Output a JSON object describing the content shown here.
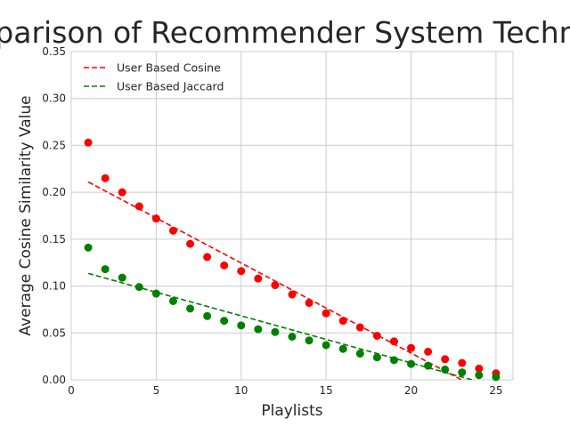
{
  "chart_data": {
    "type": "scatter",
    "title": "Comparison of Recommender System Techniques",
    "xlabel": "Playlists",
    "ylabel": "Average Cosine Similarity Value",
    "xlim": [
      0,
      26
    ],
    "ylim": [
      0,
      0.35
    ],
    "xticks": [
      0,
      5,
      10,
      15,
      20,
      25
    ],
    "yticks": [
      0.0,
      0.05,
      0.1,
      0.15,
      0.2,
      0.25,
      0.3,
      0.35
    ],
    "xtick_labels": [
      "0",
      "5",
      "10",
      "15",
      "20",
      "25"
    ],
    "ytick_labels": [
      "0.00",
      "0.05",
      "0.10",
      "0.15",
      "0.20",
      "0.25",
      "0.30",
      "0.35"
    ],
    "grid": true,
    "legend_position": "top-left",
    "x": [
      1,
      2,
      3,
      4,
      5,
      6,
      7,
      8,
      9,
      10,
      11,
      12,
      13,
      14,
      15,
      16,
      17,
      18,
      19,
      20,
      21,
      22,
      23,
      24,
      25
    ],
    "series": [
      {
        "name": "User Based Cosine",
        "color": "#ff0000",
        "values": [
          0.253,
          0.215,
          0.2,
          0.185,
          0.172,
          0.159,
          0.145,
          0.131,
          0.122,
          0.116,
          0.108,
          0.101,
          0.091,
          0.082,
          0.071,
          0.063,
          0.056,
          0.047,
          0.041,
          0.034,
          0.03,
          0.022,
          0.018,
          0.012,
          0.007
        ],
        "trend": {
          "x": [
            1,
            25
          ],
          "y": [
            0.211,
            -0.0195
          ]
        }
      },
      {
        "name": "User Based Jaccard",
        "color": "#008000",
        "values": [
          0.141,
          0.118,
          0.109,
          0.099,
          0.092,
          0.084,
          0.076,
          0.068,
          0.063,
          0.058,
          0.054,
          0.051,
          0.046,
          0.042,
          0.037,
          0.033,
          0.028,
          0.024,
          0.021,
          0.017,
          0.015,
          0.011,
          0.008,
          0.005,
          0.003
        ],
        "trend": {
          "x": [
            1,
            25
          ],
          "y": [
            0.1135,
            -0.0071
          ]
        }
      }
    ]
  }
}
